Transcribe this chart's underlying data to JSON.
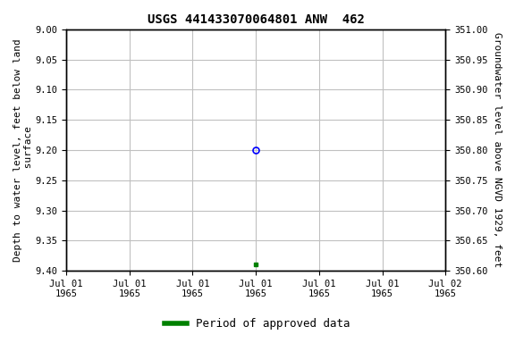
{
  "title": "USGS 441433070064801 ANW  462",
  "ylabel_left": "Depth to water level, feet below land\n surface",
  "ylabel_right": "Groundwater level above NGVD 1929, feet",
  "ylim_left": [
    9.4,
    9.0
  ],
  "ylim_right": [
    350.6,
    351.0
  ],
  "yticks_left": [
    9.0,
    9.05,
    9.1,
    9.15,
    9.2,
    9.25,
    9.3,
    9.35,
    9.4
  ],
  "yticks_right": [
    350.6,
    350.65,
    350.7,
    350.75,
    350.8,
    350.85,
    350.9,
    350.95,
    351.0
  ],
  "num_xticks": 7,
  "xtick_labels": [
    "Jul 01\n1965",
    "Jul 01\n1965",
    "Jul 01\n1965",
    "Jul 01\n1965",
    "Jul 01\n1965",
    "Jul 01\n1965",
    "Jul 02\n1965"
  ],
  "data_blue_x": 3,
  "data_blue_y": 9.2,
  "data_green_x": 3,
  "data_green_y": 9.39,
  "xlim": [
    0,
    6
  ],
  "legend_label": "Period of approved data",
  "legend_color": "#008000",
  "background_color": "#ffffff",
  "grid_color": "#c0c0c0",
  "point_blue_color": "#0000ff",
  "point_green_color": "#008000",
  "title_fontsize": 10,
  "axis_label_fontsize": 8,
  "tick_fontsize": 7.5,
  "legend_fontsize": 9
}
